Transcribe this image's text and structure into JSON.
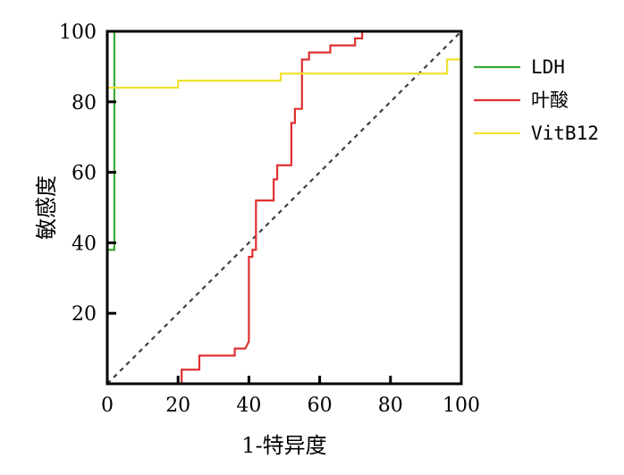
{
  "chart_data": {
    "type": "line",
    "title": "",
    "xlabel": "1-特异度",
    "ylabel": "敏感度",
    "xlim": [
      0,
      100
    ],
    "ylim": [
      0,
      100
    ],
    "x_ticks": [
      0,
      20,
      40,
      60,
      80,
      100
    ],
    "x_tick_labels": [
      "0",
      "20",
      "40",
      "60",
      "80",
      "100"
    ],
    "y_ticks": [
      20,
      40,
      60,
      80,
      100
    ],
    "y_tick_labels": [
      "20",
      "40",
      "60",
      "80",
      "100"
    ],
    "grid": false,
    "legend_position": "right",
    "reference_line": {
      "style": "dashed",
      "color": "#404040",
      "points": [
        [
          0,
          0
        ],
        [
          100,
          100
        ]
      ]
    },
    "series": [
      {
        "name": "LDH",
        "color": "#3aaa35",
        "points": [
          [
            0,
            0
          ],
          [
            0,
            38
          ],
          [
            2,
            38
          ],
          [
            2,
            100
          ],
          [
            100,
            100
          ]
        ]
      },
      {
        "name": "叶酸",
        "color": "#e03030",
        "points": [
          [
            21,
            0
          ],
          [
            21,
            4
          ],
          [
            26,
            4
          ],
          [
            26,
            8
          ],
          [
            36,
            8
          ],
          [
            36,
            10
          ],
          [
            39,
            10
          ],
          [
            40,
            12
          ],
          [
            40,
            36
          ],
          [
            41,
            36
          ],
          [
            41,
            38
          ],
          [
            42,
            38
          ],
          [
            42,
            52
          ],
          [
            47,
            52
          ],
          [
            47,
            58
          ],
          [
            48,
            58
          ],
          [
            48,
            62
          ],
          [
            52,
            62
          ],
          [
            52,
            74
          ],
          [
            53,
            74
          ],
          [
            53,
            78
          ],
          [
            55,
            78
          ],
          [
            55,
            92
          ],
          [
            57,
            92
          ],
          [
            57,
            94
          ],
          [
            63,
            94
          ],
          [
            63,
            96
          ],
          [
            70,
            96
          ],
          [
            70,
            98
          ],
          [
            72,
            98
          ],
          [
            72,
            100
          ],
          [
            100,
            100
          ]
        ]
      },
      {
        "name": "VitB12",
        "color": "#f0e030",
        "points": [
          [
            0,
            0
          ],
          [
            0,
            84
          ],
          [
            20,
            84
          ],
          [
            20,
            86
          ],
          [
            49,
            86
          ],
          [
            49,
            88
          ],
          [
            96,
            88
          ],
          [
            96,
            92
          ],
          [
            100,
            92
          ],
          [
            100,
            100
          ]
        ]
      }
    ]
  }
}
